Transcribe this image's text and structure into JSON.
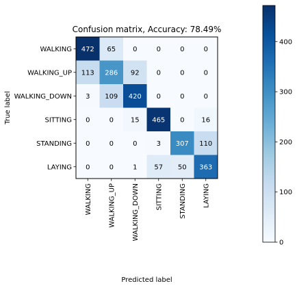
{
  "chart_data": {
    "type": "heatmap",
    "title": "Confusion matrix, Accuracy: 78.49%",
    "xlabel": "Predicted label",
    "ylabel": "True label",
    "x_categories": [
      "WALKING",
      "WALKING_UP",
      "WALKING_DOWN",
      "SITTING",
      "STANDING",
      "LAYING"
    ],
    "y_categories": [
      "WALKING",
      "WALKING_UP",
      "WALKING_DOWN",
      "SITTING",
      "STANDING",
      "LAYING"
    ],
    "matrix": [
      [
        472,
        65,
        0,
        0,
        0,
        0
      ],
      [
        113,
        286,
        92,
        0,
        0,
        0
      ],
      [
        3,
        109,
        420,
        0,
        0,
        0
      ],
      [
        0,
        0,
        15,
        465,
        0,
        16
      ],
      [
        0,
        0,
        0,
        3,
        307,
        110
      ],
      [
        0,
        0,
        1,
        57,
        50,
        363
      ]
    ],
    "colormap": "Blues",
    "color_range": [
      0,
      472
    ],
    "colorbar_ticks": [
      0,
      100,
      200,
      300,
      400
    ],
    "grid": false
  }
}
